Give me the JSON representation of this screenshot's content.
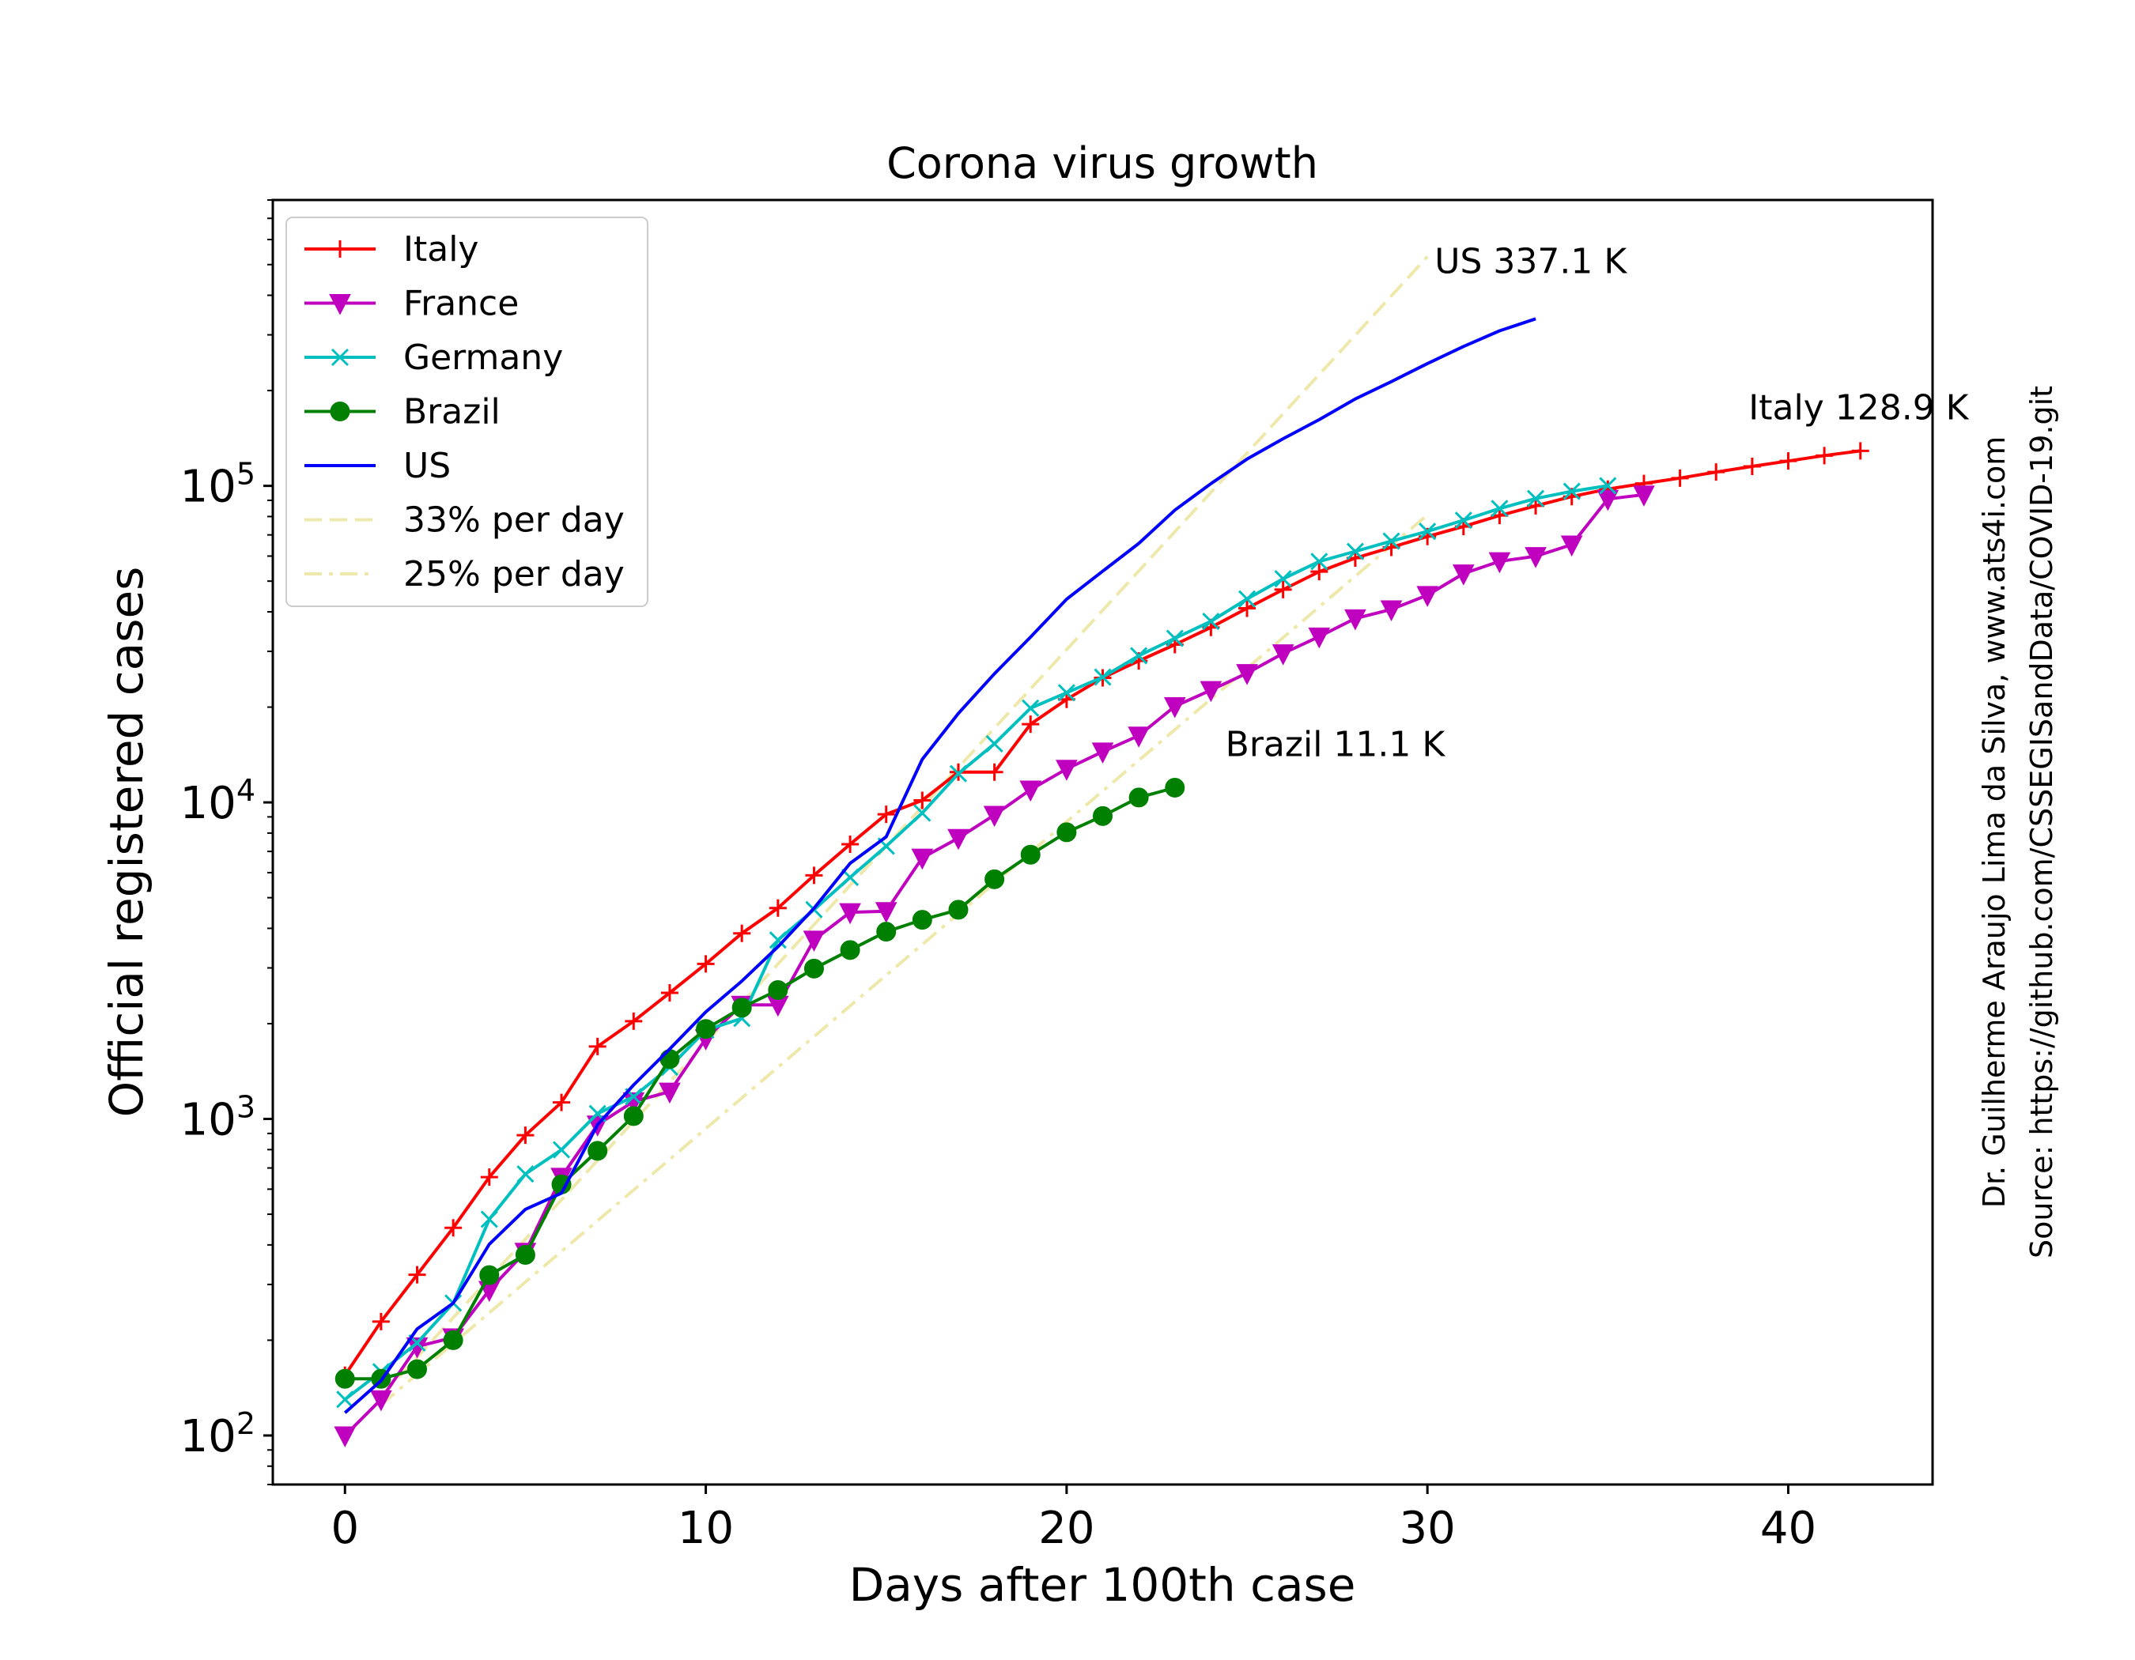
{
  "chart_data": {
    "type": "line",
    "title": "Corona virus growth",
    "xlabel": "Days after 100th case",
    "ylabel": "Official registered cases",
    "yscale": "log",
    "xlim": [
      -2,
      44
    ],
    "ylim": [
      70,
      800000
    ],
    "xticks": [
      0,
      10,
      20,
      30,
      40
    ],
    "xtick_labels": [
      "0",
      "10",
      "20",
      "30",
      "40"
    ],
    "yticks": [
      100,
      1000,
      10000,
      100000
    ],
    "ytick_labels": [
      {
        "base": "10",
        "exp": "2"
      },
      {
        "base": "10",
        "exp": "3"
      },
      {
        "base": "10",
        "exp": "4"
      },
      {
        "base": "10",
        "exp": "5"
      }
    ],
    "grid": false,
    "legend_position": "upper-left",
    "series": [
      {
        "name": "Italy",
        "color": "#ff0000",
        "marker": "plus",
        "dash": "solid",
        "x": [
          0,
          1,
          2,
          3,
          4,
          5,
          6,
          7,
          8,
          9,
          10,
          11,
          12,
          13,
          14,
          15,
          16,
          17,
          18,
          19,
          20,
          21,
          22,
          23,
          24,
          25,
          26,
          27,
          28,
          29,
          30,
          31,
          32,
          33,
          34,
          35,
          36,
          37,
          38,
          39,
          40,
          41,
          42
        ],
        "y": [
          155,
          229,
          322,
          453,
          655,
          888,
          1128,
          1694,
          2036,
          2502,
          3089,
          3858,
          4636,
          5883,
          7375,
          9172,
          10149,
          12462,
          12462,
          17660,
          21157,
          24747,
          27980,
          31506,
          35713,
          41035,
          47021,
          53578,
          59138,
          63927,
          69176,
          74386,
          80589,
          86498,
          92472,
          97689,
          101739,
          105792,
          110574,
          115242,
          119827,
          124632,
          128948
        ]
      },
      {
        "name": "France",
        "color": "#bf00bf",
        "marker": "triangle-down",
        "dash": "solid",
        "x": [
          0,
          1,
          2,
          3,
          4,
          5,
          6,
          7,
          8,
          9,
          10,
          11,
          12,
          13,
          14,
          15,
          16,
          17,
          18,
          19,
          20,
          21,
          22,
          23,
          24,
          25,
          26,
          27,
          28,
          29,
          30,
          31,
          32,
          33,
          34,
          35,
          36
        ],
        "y": [
          100,
          130,
          191,
          204,
          288,
          380,
          656,
          959,
          1136,
          1219,
          1794,
          2293,
          2293,
          3681,
          4496,
          4532,
          6683,
          7715,
          9124,
          10970,
          12758,
          14463,
          16243,
          20123,
          22622,
          25600,
          29551,
          33402,
          38105,
          40708,
          45170,
          52827,
          57749,
          59929,
          65202,
          90848,
          93790
        ]
      },
      {
        "name": "Germany",
        "color": "#00bfbf",
        "marker": "x",
        "dash": "solid",
        "x": [
          0,
          1,
          2,
          3,
          4,
          5,
          6,
          7,
          8,
          9,
          10,
          11,
          12,
          13,
          14,
          15,
          16,
          17,
          18,
          19,
          20,
          21,
          22,
          23,
          24,
          25,
          26,
          27,
          28,
          29,
          30,
          31,
          32,
          33,
          34,
          35
        ],
        "y": [
          130,
          159,
          196,
          262,
          482,
          670,
          799,
          1040,
          1176,
          1457,
          1908,
          2078,
          3675,
          4585,
          5795,
          7272,
          9257,
          12327,
          15320,
          19848,
          22213,
          24873,
          29056,
          32986,
          37323,
          43938,
          50871,
          57695,
          62095,
          66885,
          71808,
          77872,
          84794,
          91159,
          96092,
          100123
        ]
      },
      {
        "name": "Brazil",
        "color": "#008000",
        "marker": "circle",
        "dash": "solid",
        "x": [
          0,
          1,
          2,
          3,
          4,
          5,
          6,
          7,
          8,
          9,
          10,
          11,
          12,
          13,
          14,
          15,
          16,
          17,
          18,
          19,
          20,
          21,
          22,
          23
        ],
        "y": [
          151,
          151,
          162,
          200,
          321,
          372,
          621,
          793,
          1021,
          1546,
          1924,
          2247,
          2554,
          2985,
          3417,
          3904,
          4256,
          4579,
          5717,
          6836,
          8044,
          9056,
          10360,
          11130
        ]
      },
      {
        "name": "US",
        "color": "#0000ff",
        "marker": "none",
        "dash": "solid",
        "x": [
          0,
          1,
          2,
          3,
          4,
          5,
          6,
          7,
          8,
          9,
          10,
          11,
          12,
          13,
          14,
          15,
          16,
          17,
          18,
          19,
          20,
          21,
          22,
          23,
          24,
          25,
          26,
          27,
          28,
          29,
          30,
          31,
          32,
          33
        ],
        "y": [
          118,
          149,
          217,
          262,
          402,
          518,
          583,
          959,
          1281,
          1663,
          2179,
          2727,
          3499,
          4632,
          6421,
          7786,
          13680,
          19101,
          25493,
          33276,
          43847,
          53740,
          65778,
          83836,
          101657,
          121478,
          140886,
          161807,
          188172,
          213372,
          243453,
          275586,
          308850,
          337072
        ]
      },
      {
        "name": "33% per day",
        "color": "#eee8aa",
        "marker": "none",
        "dash": "dashed",
        "x": [
          1,
          30
        ],
        "y": [
          133,
          530000
        ]
      },
      {
        "name": "25% per day",
        "color": "#eee8aa",
        "marker": "none",
        "dash": "dashdot",
        "x": [
          1,
          30
        ],
        "y": [
          125,
          81000
        ]
      }
    ],
    "annotations": [
      {
        "text": "US 337.1 K",
        "x": 30.2,
        "y": 470000
      },
      {
        "text": "Italy 128.9 K",
        "x": 38.9,
        "y": 162000
      },
      {
        "text": "Brazil 11.1 K",
        "x": 24.4,
        "y": 14000
      }
    ],
    "credits": [
      "Dr. Guilherme Araujo Lima da Silva, www.ats4i.com",
      "Source: https://github.com/CSSEGISandData/COVID-19.git"
    ]
  }
}
